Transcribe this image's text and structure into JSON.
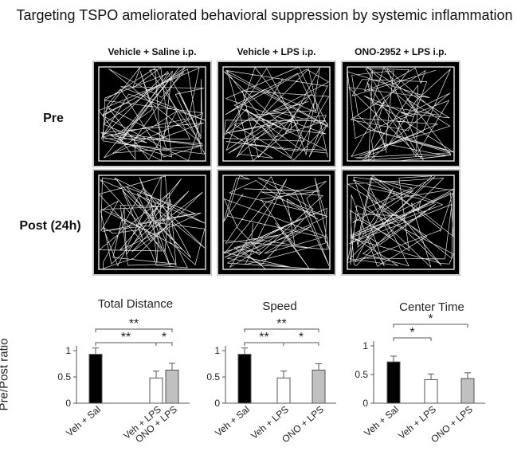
{
  "title": "Targeting TSPO ameliorated behavioral suppression by systemic inflammation",
  "columns": [
    "Vehicle + Saline i.p.",
    "Vehicle + LPS i.p.",
    "ONO-2952 + LPS i.p."
  ],
  "rows": [
    "Pre",
    "Post (24h)"
  ],
  "colors": {
    "arena_bg": "#000000",
    "arena_border": "#c7c7c7",
    "track": "#e6e6e6",
    "bar_veh_sal": "#000000",
    "bar_veh_lps": "#ffffff",
    "bar_ono_lps": "#c0c0c0"
  },
  "chart_data": [
    {
      "type": "bar",
      "title": "Total Distance",
      "ylabel": "Pre/Post ratio",
      "categories": [
        "Veh + Sal",
        "Veh + LPS",
        "ONO + LPS"
      ],
      "values": [
        0.93,
        0.48,
        0.63
      ],
      "errors": [
        0.12,
        0.13,
        0.13
      ],
      "ylim": [
        0,
        1
      ],
      "yticks": [
        "0",
        "0.5",
        "1"
      ],
      "significance": [
        {
          "pair": [
            0,
            1
          ],
          "label": "**"
        },
        {
          "pair": [
            1,
            2
          ],
          "label": "*"
        },
        {
          "pair": [
            0,
            2
          ],
          "label": "**"
        }
      ]
    },
    {
      "type": "bar",
      "title": "Speed",
      "categories": [
        "Veh + Sal",
        "Veh + LPS",
        "ONO + LPS"
      ],
      "values": [
        0.93,
        0.48,
        0.63
      ],
      "errors": [
        0.12,
        0.13,
        0.12
      ],
      "ylim": [
        0,
        1
      ],
      "yticks": [
        "0",
        "0.5",
        "1"
      ],
      "significance": [
        {
          "pair": [
            0,
            1
          ],
          "label": "**"
        },
        {
          "pair": [
            1,
            2
          ],
          "label": "*"
        },
        {
          "pair": [
            0,
            2
          ],
          "label": "**"
        }
      ]
    },
    {
      "type": "bar",
      "title": "Center Time",
      "categories": [
        "Veh + Sal",
        "Veh + LPS",
        "ONO + LPS"
      ],
      "values": [
        0.72,
        0.41,
        0.43
      ],
      "errors": [
        0.1,
        0.1,
        0.1
      ],
      "ylim": [
        0,
        1
      ],
      "yticks": [
        "0",
        "0.5",
        "1"
      ],
      "significance": [
        {
          "pair": [
            0,
            1
          ],
          "label": "*"
        },
        {
          "pair": [
            0,
            2
          ],
          "label": "*"
        }
      ]
    }
  ]
}
